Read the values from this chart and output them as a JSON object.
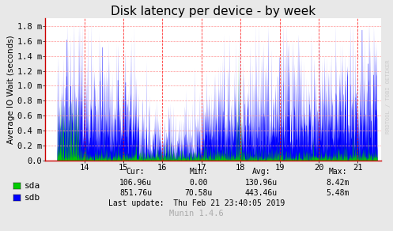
{
  "title": "Disk latency per device - by week",
  "ylabel": "Average IO Wait (seconds)",
  "xlabel_watermark": "RRDTOOL / TOBI OETIKER",
  "footer": "Munin 1.4.6",
  "last_update": "Last update:  Thu Feb 21 23:40:05 2019",
  "x_min": 13.0,
  "x_max": 21.6,
  "y_min": 0.0,
  "y_max": 1.9,
  "y_ticks": [
    0.0,
    0.2,
    0.4,
    0.6,
    0.8,
    1.0,
    1.2,
    1.4,
    1.6,
    1.8
  ],
  "y_tick_labels": [
    "0.0",
    "0.2 m",
    "0.4 m",
    "0.6 m",
    "0.8 m",
    "1.0 m",
    "1.2 m",
    "1.4 m",
    "1.6 m",
    "1.8 m"
  ],
  "bg_color": "#e8e8e8",
  "plot_bg_color": "#ffffff",
  "grid_color": "#ff9999",
  "axes_color": "#cc0000",
  "sda_color": "#00cc00",
  "sdb_color": "#0000ff",
  "vline_color": "#ff0000",
  "vline_positions": [
    14.0,
    15.0,
    16.0,
    17.0,
    18.0,
    19.0,
    20.0,
    21.0
  ],
  "legend_sda": "sda",
  "legend_sdb": "sdb",
  "cur_label": "Cur:",
  "min_label": "Min:",
  "avg_label": "Avg:",
  "max_label": "Max:",
  "sda_cur": "106.96u",
  "sda_min": "0.00",
  "sda_avg": "130.96u",
  "sda_max": "8.42m",
  "sdb_cur": "851.76u",
  "sdb_min": "70.58u",
  "sdb_avg": "443.46u",
  "sdb_max": "5.48m",
  "title_fontsize": 11,
  "label_fontsize": 7.5,
  "tick_fontsize": 7.5,
  "footer_fontsize": 7,
  "legend_fontsize": 8
}
